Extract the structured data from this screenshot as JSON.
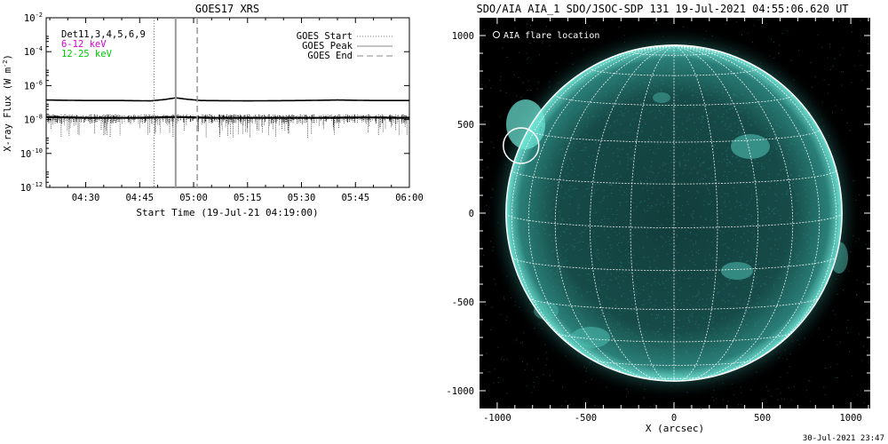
{
  "chart_data": [
    {
      "type": "line",
      "title": "GOES17 XRS",
      "xlabel": "Start Time (19-Jul-21 04:19:00)",
      "ylabel": "X-ray Flux (W m",
      "ylabel_sup": "-2",
      "ylabel_close": ")",
      "x_ticks": [
        "04:30",
        "04:45",
        "05:00",
        "05:15",
        "05:30",
        "05:45",
        "06:00"
      ],
      "x_tick_minutes": [
        30,
        45,
        60,
        75,
        90,
        105,
        120
      ],
      "xlim_minutes": [
        19,
        120
      ],
      "y_scale": "log",
      "ylim_exp": [
        -12,
        -2
      ],
      "y_ticks_exp": [
        -2,
        -4,
        -6,
        -8,
        -10,
        -12
      ],
      "y_tick_base": "10",
      "y_tick_sup": [
        "-2",
        "-4",
        "-6",
        "-8",
        "-10",
        "-12"
      ],
      "channels_label": "Det11,3,4,5,6,9",
      "channels": [
        {
          "name": "6-12 keV",
          "color": "#d400d4"
        },
        {
          "name": "12-25 keV",
          "color": "#00cc00"
        }
      ],
      "legend": [
        {
          "name": "GOES Start",
          "style": "dotted"
        },
        {
          "name": "GOES Peak",
          "style": "solid"
        },
        {
          "name": "GOES End",
          "style": "dashed"
        }
      ],
      "series": [
        {
          "name": "long",
          "points": [
            [
              19,
              -6.85
            ],
            [
              30,
              -6.88
            ],
            [
              40,
              -6.88
            ],
            [
              48,
              -6.9
            ],
            [
              52,
              -6.82
            ],
            [
              55,
              -6.72
            ],
            [
              58,
              -6.8
            ],
            [
              62,
              -6.88
            ],
            [
              75,
              -6.9
            ],
            [
              90,
              -6.88
            ],
            [
              100,
              -6.85
            ],
            [
              110,
              -6.88
            ],
            [
              120,
              -6.88
            ]
          ]
        },
        {
          "name": "short",
          "points": [
            [
              19,
              -7.85
            ],
            [
              30,
              -7.9
            ],
            [
              45,
              -7.9
            ],
            [
              55,
              -7.85
            ],
            [
              65,
              -7.9
            ],
            [
              80,
              -7.9
            ],
            [
              95,
              -7.9
            ],
            [
              110,
              -7.88
            ],
            [
              120,
              -7.9
            ]
          ]
        }
      ],
      "event_markers_minutes": {
        "start": 49,
        "peak": 55,
        "end": 61
      }
    },
    {
      "type": "scatter",
      "title": "SDO/AIA AIA_1 SDO/JSOC-SDP 131 19-Jul-2021 04:55:06.620 UT",
      "xlabel": "X (arcsec)",
      "ylabel": "",
      "x_ticks": [
        -1000,
        -500,
        0,
        500,
        1000
      ],
      "y_ticks": [
        1000,
        500,
        0,
        -500,
        -1000
      ],
      "xlim": [
        -1100,
        1110
      ],
      "ylim": [
        -1100,
        1100
      ],
      "solar_radius_arcsec": 950,
      "legend": [
        {
          "name": "AIA flare location",
          "marker": "circle"
        }
      ],
      "flare_location": {
        "x": -865,
        "y": 380
      },
      "footer": "30-Jul-2021 23:47"
    }
  ]
}
